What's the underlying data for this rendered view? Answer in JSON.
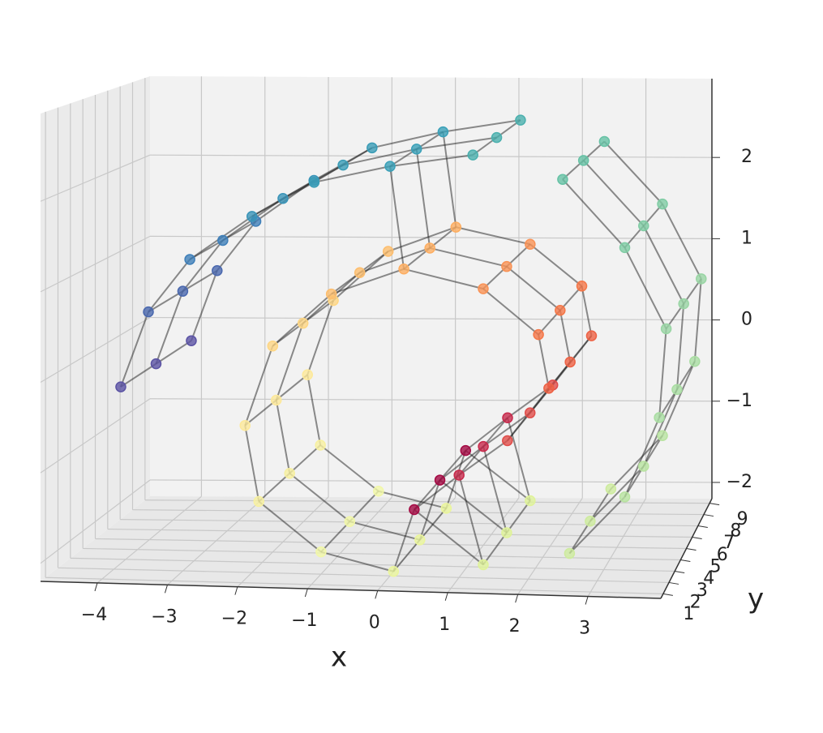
{
  "chart_data": {
    "type": "scatter3d",
    "xlabel": "x",
    "ylabel": "y",
    "xlim": [
      -4.81,
      4.04
    ],
    "ylim": [
      0.6,
      9.4
    ],
    "zlim": [
      -2.2,
      2.97
    ],
    "xticks": [
      {
        "value": -4,
        "label": "−4"
      },
      {
        "value": -3,
        "label": "−3"
      },
      {
        "value": -2,
        "label": "−2"
      },
      {
        "value": -1,
        "label": "−1"
      },
      0,
      1,
      2,
      3
    ],
    "yticks": [
      1,
      2,
      3,
      4,
      5,
      6,
      7,
      8,
      9
    ],
    "zticks": [
      {
        "value": -2,
        "label": "−2"
      },
      {
        "value": -1,
        "label": "−1"
      },
      0,
      1,
      2
    ],
    "grid": true,
    "x": [
      -3.9,
      -3.9,
      -3.9,
      -3.5,
      -3.5,
      -3.5,
      -2.9,
      -2.9,
      -2.9,
      -2.0,
      -2.0,
      -2.0,
      -1.1,
      -1.1,
      -1.1,
      0,
      0,
      0,
      1.2,
      1.2,
      1.2,
      2.5,
      2.5,
      2.5,
      3.4,
      3.4,
      3.4,
      4.0,
      4.0,
      4.0,
      3.9,
      3.9,
      3.9,
      3.4,
      3.4,
      3.4,
      2.6,
      2.6,
      2.6,
      1.35,
      1.35,
      1.35,
      0.05,
      0.05,
      0.05,
      -1.0,
      -1.0,
      -1.0,
      -1.9,
      -1.9,
      -1.9,
      -2.1,
      -2.1,
      -2.1,
      -1.7,
      -1.7,
      -1.7,
      -0.85,
      -0.85,
      -0.85,
      0.2,
      0.2,
      0.2,
      1.35,
      1.35,
      1.35,
      2.15,
      2.15,
      2.15,
      2.3,
      2.3,
      2.3,
      1.7,
      1.7,
      1.7,
      1.0,
      1.0,
      1.0,
      0.35,
      0.35,
      0.35
    ],
    "y": [
      2,
      5,
      8,
      2,
      5,
      8,
      2,
      5,
      8,
      2,
      5,
      8,
      2,
      5,
      8,
      2,
      5,
      8,
      2,
      5,
      8,
      2,
      5,
      8,
      2,
      5,
      8,
      2,
      5,
      8,
      2,
      5,
      8,
      2,
      5,
      8,
      2,
      5,
      8,
      2,
      5,
      8,
      2,
      5,
      8,
      2,
      5,
      8,
      2,
      5,
      8,
      2,
      5,
      8,
      2,
      5,
      8,
      2,
      5,
      8,
      2,
      5,
      8,
      2,
      5,
      8,
      2,
      5,
      8,
      2,
      5,
      8,
      2,
      5,
      8,
      2,
      5,
      8,
      2,
      5,
      8
    ],
    "z": [
      -0.15,
      -0.15,
      -0.15,
      0.7,
      0.7,
      0.7,
      1.3,
      1.3,
      1.3,
      1.8,
      1.8,
      1.8,
      2.2,
      2.2,
      2.2,
      2.4,
      2.4,
      2.4,
      2.55,
      2.55,
      2.55,
      2.3,
      2.3,
      2.3,
      1.55,
      1.55,
      1.55,
      0.65,
      0.65,
      0.65,
      -0.35,
      -0.35,
      -0.35,
      -1.25,
      -1.25,
      -1.25,
      -1.9,
      -1.9,
      -1.9,
      -2.05,
      -2.05,
      -2.05,
      -2.15,
      -2.15,
      -2.15,
      -1.95,
      -1.95,
      -1.95,
      -1.4,
      -1.4,
      -1.4,
      -0.55,
      -0.55,
      -0.55,
      0.35,
      0.35,
      0.35,
      0.95,
      0.95,
      0.95,
      1.25,
      1.25,
      1.25,
      1.05,
      1.05,
      1.05,
      0.55,
      0.55,
      0.55,
      -0.05,
      -0.05,
      -0.05,
      -0.65,
      -0.65,
      -0.65,
      -1.05,
      -1.05,
      -1.05,
      -1.45,
      -1.45,
      -1.45
    ],
    "colors": [
      "#5b53a4",
      "#5b53a4",
      "#5b53a4",
      "#4a68ae",
      "#4a68ae",
      "#4a68ae",
      "#3f7fb9",
      "#3f7fb9",
      "#3f7fb9",
      "#3994b8",
      "#3994b8",
      "#3994b8",
      "#3a9cb6",
      "#3a9cb6",
      "#3a9cb6",
      "#3aa0b8",
      "#3aa0b8",
      "#3aa0b8",
      "#4bb0ae",
      "#4bb0ae",
      "#4bb0ae",
      "#66c2a5",
      "#66c2a5",
      "#66c2a5",
      "#7fcca4",
      "#7fcca4",
      "#7fcca4",
      "#99d5a4",
      "#99d5a4",
      "#99d5a4",
      "#a9dda2",
      "#a9dda2",
      "#a9dda2",
      "#b8e3a0",
      "#b8e3a0",
      "#b8e3a0",
      "#cdeb9d",
      "#cdeb9d",
      "#cdeb9d",
      "#dff299",
      "#dff299",
      "#dff299",
      "#eaf59c",
      "#eaf59c",
      "#eaf59c",
      "#f1f7a8",
      "#f1f7a8",
      "#f1f7a8",
      "#f7f0a0",
      "#f7f0a0",
      "#f7f0a0",
      "#fde99a",
      "#fde99a",
      "#fde99a",
      "#fed683",
      "#fed683",
      "#fed683",
      "#fdbe6e",
      "#fdbe6e",
      "#fdbe6e",
      "#fdae61",
      "#fdae61",
      "#fdae61",
      "#f99255",
      "#f99255",
      "#f99255",
      "#f57748",
      "#f57748",
      "#f57748",
      "#ed6245",
      "#ed6245",
      "#ed6245",
      "#e04d4a",
      "#e04d4a",
      "#e04d4a",
      "#c72b4c",
      "#c72b4c",
      "#c72b4c",
      "#a40a44",
      "#a40a44",
      "#a40a44"
    ]
  }
}
